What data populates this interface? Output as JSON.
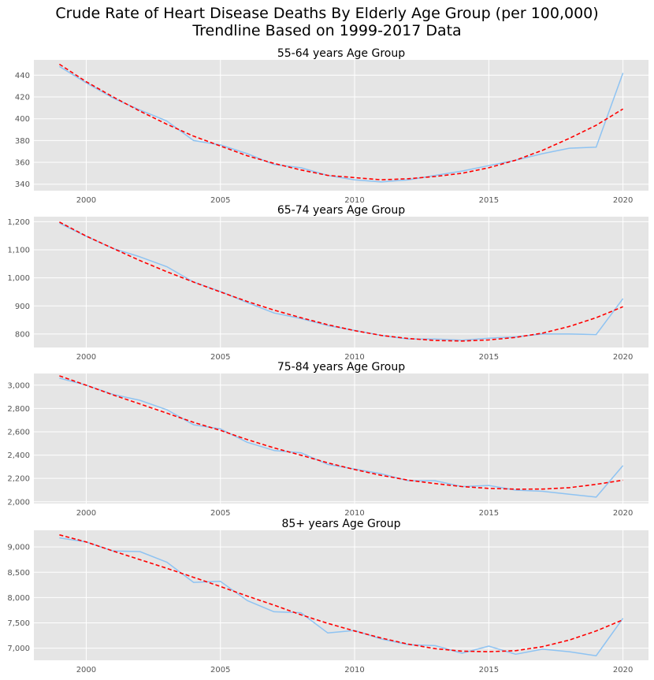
{
  "figure": {
    "title_line1": "Crude Rate of Heart Disease Deaths By Elderly Age Group (per 100,000)",
    "title_line2": "Trendline Based on 1999-2017 Data"
  },
  "style": {
    "plot_bg": "#e5e5e5",
    "grid": "#ffffff",
    "actual_color": "#8ec3f2",
    "trend_color": "#ff0000",
    "tick_color": "#555555"
  },
  "chart_data": [
    {
      "type": "line",
      "title": "55-64 years Age Group",
      "x": [
        1999,
        2000,
        2001,
        2002,
        2003,
        2004,
        2005,
        2006,
        2007,
        2008,
        2009,
        2010,
        2011,
        2012,
        2013,
        2014,
        2015,
        2016,
        2017,
        2018,
        2019,
        2020
      ],
      "xticks": [
        2000,
        2005,
        2010,
        2015,
        2020
      ],
      "xlim": [
        1998.05,
        2020.95
      ],
      "ylim": [
        334,
        454
      ],
      "yticks": [
        340,
        360,
        380,
        400,
        420,
        440
      ],
      "ytick_labels": [
        "340",
        "360",
        "380",
        "400",
        "420",
        "440"
      ],
      "series": [
        {
          "style": "solid",
          "values": [
            448,
            433,
            419,
            408,
            398,
            380,
            376,
            368,
            358,
            355,
            348,
            344,
            342,
            344,
            348,
            352,
            357,
            362,
            368,
            373,
            374,
            442
          ]
        },
        {
          "style": "dashed",
          "values": [
            450,
            434,
            420,
            407,
            395,
            384,
            375,
            366,
            359,
            353,
            348,
            346,
            344,
            345,
            347,
            350,
            355,
            362,
            371,
            382,
            394,
            409
          ]
        }
      ]
    },
    {
      "type": "line",
      "title": "65-74 years Age Group",
      "x": [
        1999,
        2000,
        2001,
        2002,
        2003,
        2004,
        2005,
        2006,
        2007,
        2008,
        2009,
        2010,
        2011,
        2012,
        2013,
        2014,
        2015,
        2016,
        2017,
        2018,
        2019,
        2020
      ],
      "xticks": [
        2000,
        2005,
        2010,
        2015,
        2020
      ],
      "xlim": [
        1998.05,
        2020.95
      ],
      "ylim": [
        752,
        1218
      ],
      "yticks": [
        800,
        900,
        1000,
        1100,
        1200
      ],
      "ytick_labels": [
        "800",
        "900",
        "1,000",
        "1,100",
        "1,200"
      ],
      "series": [
        {
          "style": "solid",
          "values": [
            1195,
            1148,
            1105,
            1075,
            1040,
            985,
            952,
            912,
            875,
            855,
            830,
            813,
            795,
            782,
            782,
            778,
            785,
            790,
            800,
            800,
            798,
            926
          ]
        },
        {
          "style": "dashed",
          "values": [
            1199,
            1149,
            1105,
            1062,
            1022,
            985,
            950,
            916,
            885,
            858,
            833,
            812,
            795,
            784,
            777,
            775,
            779,
            788,
            803,
            827,
            858,
            897
          ]
        }
      ]
    },
    {
      "type": "line",
      "title": "75-84 years Age Group",
      "x": [
        1999,
        2000,
        2001,
        2002,
        2003,
        2004,
        2005,
        2006,
        2007,
        2008,
        2009,
        2010,
        2011,
        2012,
        2013,
        2014,
        2015,
        2016,
        2017,
        2018,
        2019,
        2020
      ],
      "xticks": [
        2000,
        2005,
        2010,
        2015,
        2020
      ],
      "xlim": [
        1998.05,
        2020.95
      ],
      "ylim": [
        1985,
        3100
      ],
      "yticks": [
        2000,
        2200,
        2400,
        2600,
        2800,
        3000
      ],
      "ytick_labels": [
        "2,000",
        "2,200",
        "2,400",
        "2,600",
        "2,800",
        "3,000"
      ],
      "series": [
        {
          "style": "solid",
          "values": [
            3060,
            3000,
            2920,
            2870,
            2790,
            2660,
            2625,
            2510,
            2440,
            2420,
            2320,
            2280,
            2240,
            2180,
            2180,
            2130,
            2140,
            2100,
            2090,
            2065,
            2040,
            2310
          ]
        },
        {
          "style": "dashed",
          "values": [
            3080,
            2999,
            2916,
            2839,
            2760,
            2681,
            2612,
            2533,
            2462,
            2399,
            2334,
            2276,
            2226,
            2185,
            2156,
            2130,
            2115,
            2108,
            2109,
            2121,
            2149,
            2185
          ]
        }
      ]
    },
    {
      "type": "line",
      "title": "85+ years Age Group",
      "x": [
        1999,
        2000,
        2001,
        2002,
        2003,
        2004,
        2005,
        2006,
        2007,
        2008,
        2009,
        2010,
        2011,
        2012,
        2013,
        2014,
        2015,
        2016,
        2017,
        2018,
        2019,
        2020
      ],
      "xticks": [
        2000,
        2005,
        2010,
        2015,
        2020
      ],
      "xlim": [
        1998.05,
        2020.95
      ],
      "ylim": [
        6760,
        9330
      ],
      "yticks": [
        7000,
        7500,
        8000,
        8500,
        9000
      ],
      "ytick_labels": [
        "7,000",
        "7,500",
        "8,000",
        "8,500",
        "9,000"
      ],
      "series": [
        {
          "style": "solid",
          "values": [
            9180,
            9100,
            8920,
            8910,
            8700,
            8300,
            8320,
            7940,
            7720,
            7700,
            7300,
            7350,
            7180,
            7070,
            7050,
            6900,
            7040,
            6880,
            6980,
            6930,
            6850,
            7590
          ]
        },
        {
          "style": "dashed",
          "values": [
            9240,
            9100,
            8920,
            8750,
            8580,
            8400,
            8220,
            8030,
            7850,
            7660,
            7490,
            7340,
            7200,
            7080,
            6990,
            6940,
            6930,
            6950,
            7030,
            7160,
            7340,
            7560
          ]
        }
      ]
    }
  ]
}
